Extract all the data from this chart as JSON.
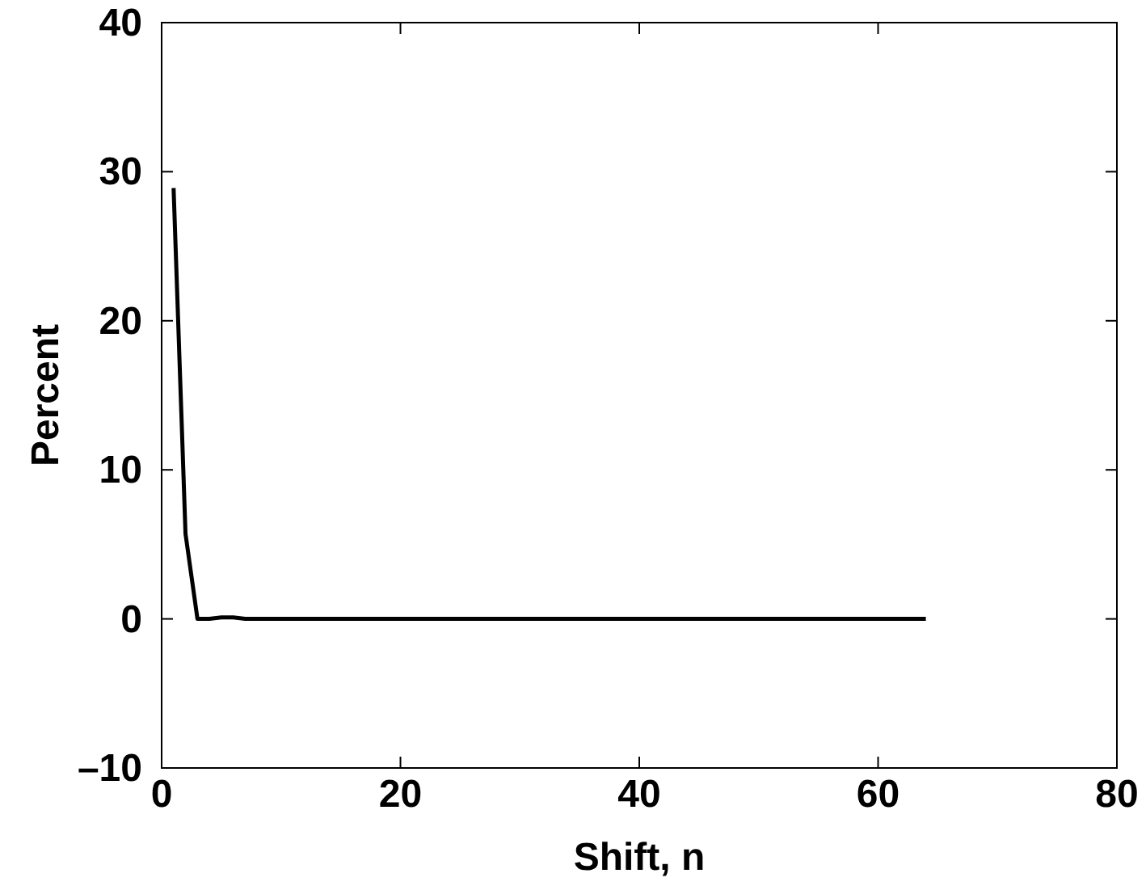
{
  "chart_data": {
    "type": "line",
    "xlabel": "Shift, n",
    "ylabel": "Percent",
    "xlim": [
      0,
      80
    ],
    "ylim": [
      -10,
      40
    ],
    "xticks": [
      0,
      20,
      40,
      60,
      80
    ],
    "yticks": [
      {
        "value": -10,
        "label": "–10"
      },
      0,
      10,
      20,
      30,
      40
    ],
    "color": "#000000",
    "grid": false,
    "marker": "none",
    "line_style": "solid",
    "x": [
      1,
      2,
      3,
      4,
      5,
      6,
      7,
      8,
      10,
      20,
      30,
      40,
      50,
      60,
      64
    ],
    "values": [
      28.9,
      5.7,
      0,
      0,
      0.1,
      0.1,
      0,
      0,
      0,
      0,
      0,
      0,
      0,
      0,
      0
    ]
  }
}
